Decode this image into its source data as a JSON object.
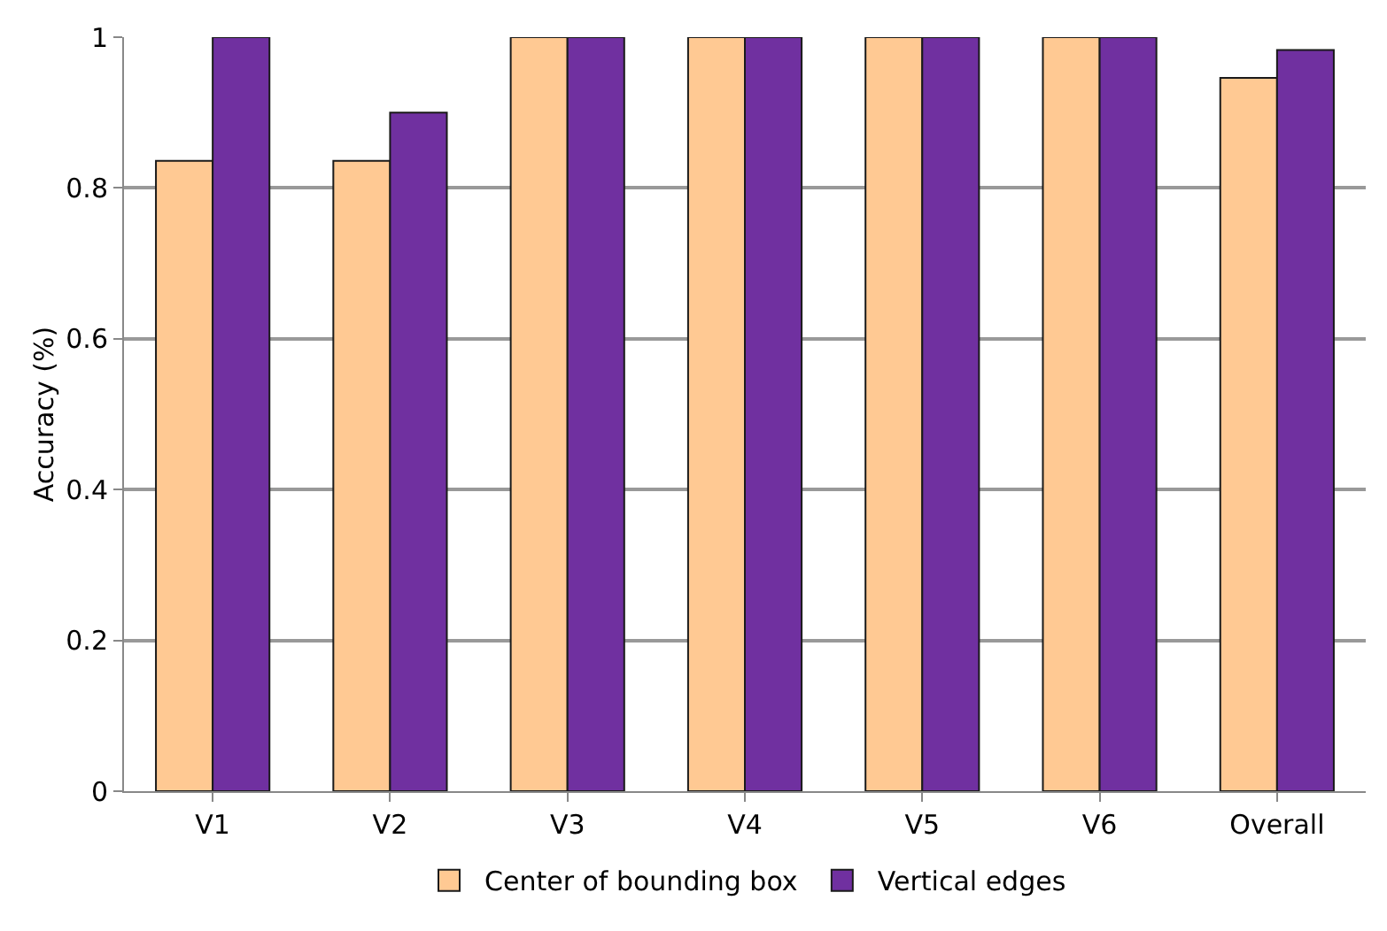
{
  "chart_data": {
    "type": "bar",
    "ylabel": "Accuracy (%)",
    "categories": [
      "V1",
      "V2",
      "V3",
      "V4",
      "V5",
      "V6",
      "Overall"
    ],
    "series": [
      {
        "name": "Center of bounding box",
        "color": "#ffc993",
        "values": [
          0.836,
          0.836,
          1,
          1,
          1,
          1,
          0.946
        ]
      },
      {
        "name": "Vertical edges",
        "color": "#7030a0",
        "values": [
          1,
          0.9,
          1,
          1,
          1,
          1,
          0.983
        ]
      }
    ],
    "ylim": [
      0,
      1
    ],
    "yticks": [
      0,
      0.2,
      0.4,
      0.6,
      0.8,
      1
    ],
    "grid": "y",
    "legend": "bottom"
  }
}
